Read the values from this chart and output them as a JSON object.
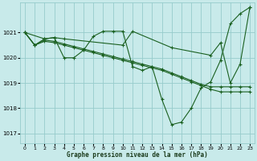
{
  "xlabel": "Graphe pression niveau de la mer (hPa)",
  "xlim": [
    -0.5,
    23.5
  ],
  "ylim": [
    1016.6,
    1022.2
  ],
  "yticks": [
    1017,
    1018,
    1019,
    1020,
    1021
  ],
  "yticklabels": [
    "1017",
    "1018",
    "1019",
    "1020",
    "1021"
  ],
  "xticks": [
    0,
    1,
    2,
    3,
    4,
    5,
    6,
    7,
    8,
    9,
    10,
    11,
    12,
    13,
    14,
    15,
    16,
    17,
    18,
    19,
    20,
    21,
    22,
    23
  ],
  "bg_color": "#c8eaea",
  "grid_color": "#96cccc",
  "line_color": "#1a6020",
  "series": [
    {
      "x": [
        0,
        1,
        2,
        3,
        4,
        5,
        6,
        7,
        8,
        9,
        10,
        11,
        12,
        13,
        14,
        15,
        16,
        17,
        18,
        19,
        20,
        21,
        22,
        23
      ],
      "y": [
        1021.0,
        1020.5,
        1020.75,
        1020.8,
        1020.0,
        1020.0,
        1020.3,
        1020.85,
        1021.05,
        1021.05,
        1021.05,
        1019.65,
        1019.5,
        1019.65,
        1018.35,
        1017.35,
        1017.45,
        1018.0,
        1018.8,
        1019.05,
        1019.9,
        1021.35,
        1021.75,
        1022.0
      ]
    },
    {
      "x": [
        0,
        2,
        3,
        4,
        10,
        11,
        15,
        19,
        20,
        21,
        22,
        23
      ],
      "y": [
        1021.0,
        1020.75,
        1020.8,
        1020.75,
        1020.5,
        1021.05,
        1020.4,
        1020.1,
        1020.6,
        1019.0,
        1019.75,
        1022.0
      ]
    },
    {
      "x": [
        0,
        1,
        2,
        3,
        4,
        5,
        6,
        7,
        8,
        9,
        10,
        11,
        12,
        13,
        14,
        15,
        16,
        17,
        18,
        19,
        20,
        21,
        22,
        23
      ],
      "y": [
        1021.0,
        1020.5,
        1020.7,
        1020.65,
        1020.55,
        1020.45,
        1020.35,
        1020.25,
        1020.15,
        1020.05,
        1019.95,
        1019.85,
        1019.75,
        1019.65,
        1019.55,
        1019.4,
        1019.25,
        1019.1,
        1018.95,
        1018.85,
        1018.85,
        1018.85,
        1018.85,
        1018.85
      ]
    },
    {
      "x": [
        0,
        1,
        2,
        3,
        4,
        5,
        6,
        7,
        8,
        9,
        10,
        11,
        12,
        13,
        14,
        15,
        16,
        17,
        18,
        19,
        20,
        21,
        22,
        23
      ],
      "y": [
        1021.0,
        1020.5,
        1020.65,
        1020.6,
        1020.5,
        1020.4,
        1020.3,
        1020.2,
        1020.1,
        1020.0,
        1019.9,
        1019.8,
        1019.7,
        1019.6,
        1019.5,
        1019.35,
        1019.2,
        1019.05,
        1018.9,
        1018.75,
        1018.65,
        1018.65,
        1018.65,
        1018.65
      ]
    }
  ]
}
